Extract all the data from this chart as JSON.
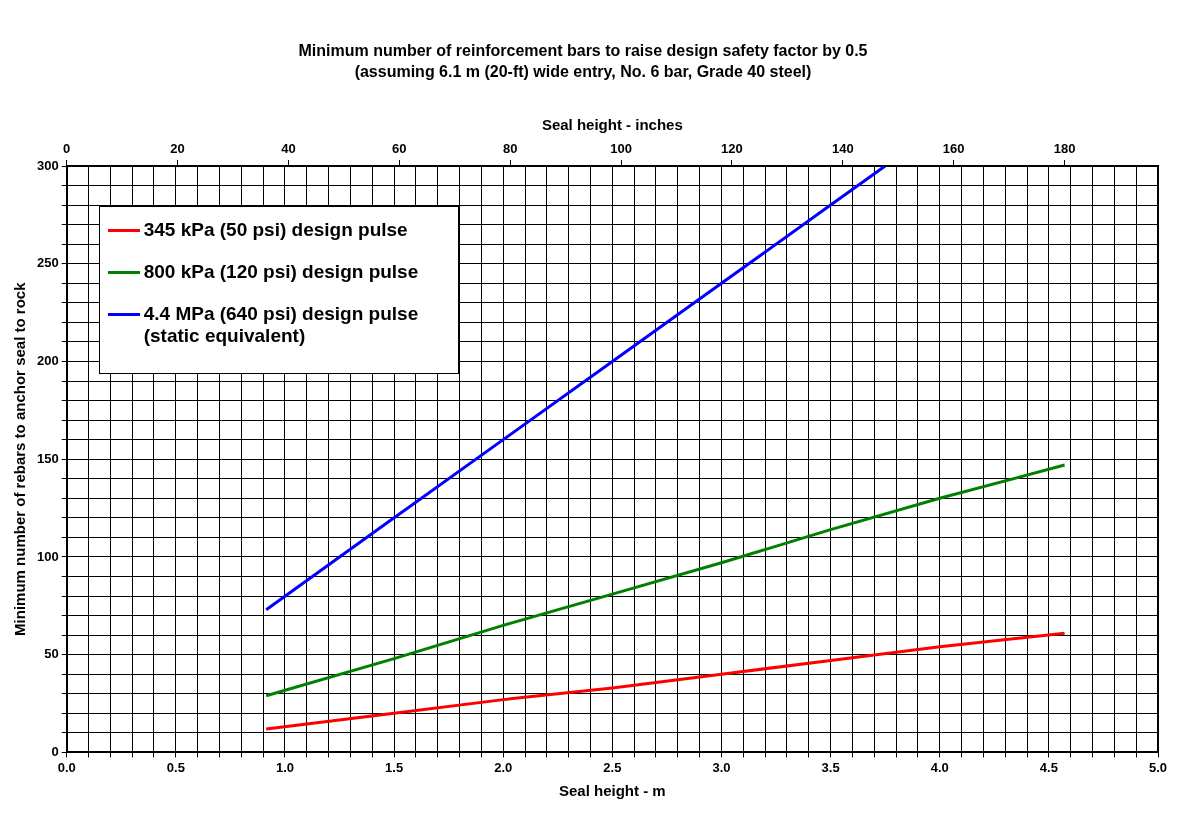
{
  "chart_data": {
    "type": "line",
    "title": "Minimum number of reinforcement bars to raise design safety factor by 0.5",
    "subtitle": "(assuming 6.1 m (20-ft) wide entry, No. 6 bar, Grade 40 steel)",
    "xlabel": "Seal height - m",
    "x2label": "Seal height - inches",
    "ylabel": "Minimum number of rebars to anchor seal to rock",
    "x": [
      0.914,
      1.5,
      2.0,
      2.5,
      3.0,
      3.5,
      4.0,
      4.572
    ],
    "series": [
      {
        "name": "345 kPa (50 psi) design pulse",
        "color": "#ff0000",
        "values": [
          12,
          20,
          27,
          33,
          40,
          47,
          54,
          61
        ]
      },
      {
        "name": "800 kPa (120 psi) design pulse",
        "color": "#008000",
        "values": [
          29,
          48,
          65,
          81,
          97,
          114,
          130,
          147
        ]
      },
      {
        "name": "4.4 MPa (640 psi) design pulse (static equivalent)",
        "color": "#0000ff",
        "x": [
          0.914,
          1.5,
          2.0,
          2.5,
          3.0,
          3.5,
          3.75
        ],
        "values": [
          73,
          120,
          160,
          200,
          240,
          280,
          300
        ]
      }
    ],
    "xlim": [
      0,
      5
    ],
    "xticks": [
      {
        "value": 0,
        "label": "0.0"
      },
      {
        "value": 0.1,
        "label": null
      },
      {
        "value": 0.2,
        "label": null
      },
      {
        "value": 0.3,
        "label": null
      },
      {
        "value": 0.4,
        "label": null
      },
      {
        "value": 0.5,
        "label": "0.5"
      },
      {
        "value": 0.6,
        "label": null
      },
      {
        "value": 0.7,
        "label": null
      },
      {
        "value": 0.8,
        "label": null
      },
      {
        "value": 0.9,
        "label": null
      },
      {
        "value": 1,
        "label": "1.0"
      },
      {
        "value": 1.1,
        "label": null
      },
      {
        "value": 1.2,
        "label": null
      },
      {
        "value": 1.3,
        "label": null
      },
      {
        "value": 1.4,
        "label": null
      },
      {
        "value": 1.5,
        "label": "1.5"
      },
      {
        "value": 1.6,
        "label": null
      },
      {
        "value": 1.7,
        "label": null
      },
      {
        "value": 1.8,
        "label": null
      },
      {
        "value": 1.9,
        "label": null
      },
      {
        "value": 2,
        "label": "2.0"
      },
      {
        "value": 2.1,
        "label": null
      },
      {
        "value": 2.2,
        "label": null
      },
      {
        "value": 2.3,
        "label": null
      },
      {
        "value": 2.4,
        "label": null
      },
      {
        "value": 2.5,
        "label": "2.5"
      },
      {
        "value": 2.6,
        "label": null
      },
      {
        "value": 2.7,
        "label": null
      },
      {
        "value": 2.8,
        "label": null
      },
      {
        "value": 2.9,
        "label": null
      },
      {
        "value": 3,
        "label": "3.0"
      },
      {
        "value": 3.1,
        "label": null
      },
      {
        "value": 3.2,
        "label": null
      },
      {
        "value": 3.3,
        "label": null
      },
      {
        "value": 3.4,
        "label": null
      },
      {
        "value": 3.5,
        "label": "3.5"
      },
      {
        "value": 3.6,
        "label": null
      },
      {
        "value": 3.7,
        "label": null
      },
      {
        "value": 3.8,
        "label": null
      },
      {
        "value": 3.9,
        "label": null
      },
      {
        "value": 4,
        "label": "4.0"
      },
      {
        "value": 4.1,
        "label": null
      },
      {
        "value": 4.2,
        "label": null
      },
      {
        "value": 4.3,
        "label": null
      },
      {
        "value": 4.4,
        "label": null
      },
      {
        "value": 4.5,
        "label": "4.5"
      },
      {
        "value": 4.6,
        "label": null
      },
      {
        "value": 4.7,
        "label": null
      },
      {
        "value": 4.8,
        "label": null
      },
      {
        "value": 4.9,
        "label": null
      },
      {
        "value": 5,
        "label": "5.0"
      }
    ],
    "x2lim": [
      0,
      196.85
    ],
    "x2ticks": [
      0,
      20,
      40,
      60,
      80,
      100,
      120,
      140,
      160,
      180
    ],
    "ylim": [
      0,
      300
    ],
    "yticks": [
      0,
      {
        "value": 10,
        "label": null
      },
      {
        "value": 20,
        "label": null
      },
      {
        "value": 30,
        "label": null
      },
      {
        "value": 40,
        "label": null
      },
      50,
      {
        "value": 60,
        "label": null
      },
      {
        "value": 70,
        "label": null
      },
      {
        "value": 80,
        "label": null
      },
      {
        "value": 90,
        "label": null
      },
      100,
      {
        "value": 110,
        "label": null
      },
      {
        "value": 120,
        "label": null
      },
      {
        "value": 130,
        "label": null
      },
      {
        "value": 140,
        "label": null
      },
      150,
      {
        "value": 160,
        "label": null
      },
      {
        "value": 170,
        "label": null
      },
      {
        "value": 180,
        "label": null
      },
      {
        "value": 190,
        "label": null
      },
      200,
      {
        "value": 210,
        "label": null
      },
      {
        "value": 220,
        "label": null
      },
      {
        "value": 230,
        "label": null
      },
      {
        "value": 240,
        "label": null
      },
      250,
      {
        "value": 260,
        "label": null
      },
      {
        "value": 270,
        "label": null
      },
      {
        "value": 280,
        "label": null
      },
      {
        "value": 290,
        "label": null
      },
      300
    ],
    "grid": true,
    "legend": "top left",
    "marker": "none",
    "line_style": "solid"
  }
}
